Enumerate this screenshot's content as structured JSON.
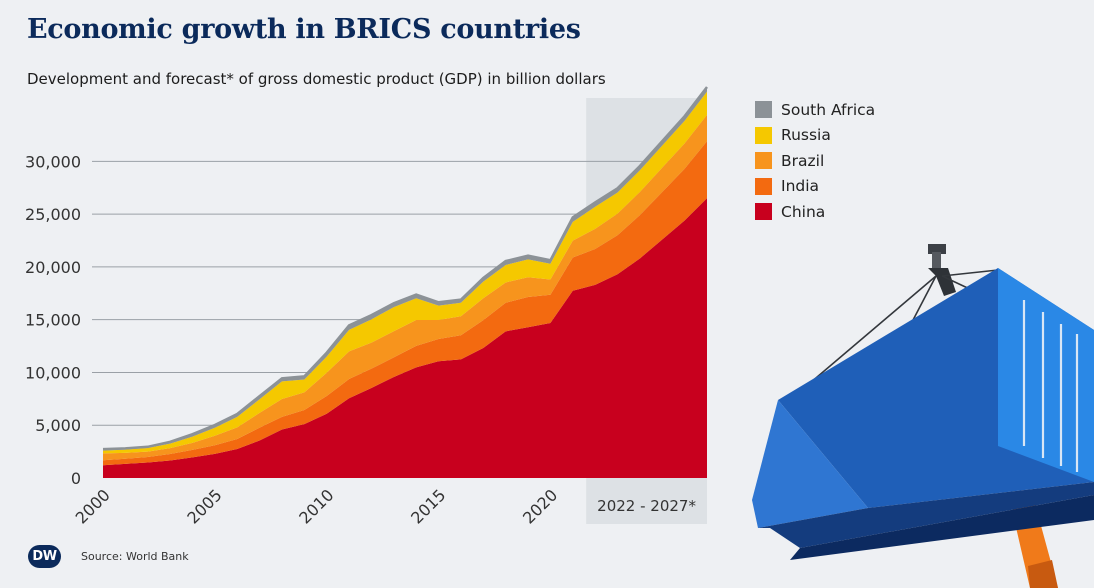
{
  "title": "Economic growth in BRICS countries",
  "subtitle": "Development and forecast* of gross domestic product (GDP) in billion dollars",
  "source": "Source: World Bank",
  "logo": "DW",
  "forecast_label": "2022 - 2027*",
  "chart_data": {
    "type": "area",
    "stacked": true,
    "x": [
      2000,
      2001,
      2002,
      2003,
      2004,
      2005,
      2006,
      2007,
      2008,
      2009,
      2010,
      2011,
      2012,
      2013,
      2014,
      2015,
      2016,
      2017,
      2018,
      2019,
      2020,
      2021,
      2022,
      2023,
      2024,
      2025,
      2026,
      2027
    ],
    "series": [
      {
        "name": "China",
        "color": "#c8001e",
        "values": [
          1211,
          1340,
          1471,
          1660,
          1955,
          2286,
          2752,
          3550,
          4594,
          5101,
          6087,
          7552,
          8532,
          9570,
          10476,
          11062,
          11233,
          12310,
          13895,
          14280,
          14688,
          17734,
          18300,
          19300,
          20800,
          22600,
          24400,
          26500
        ]
      },
      {
        "name": "India",
        "color": "#f36a10",
        "values": [
          468,
          485,
          515,
          608,
          709,
          820,
          940,
          1217,
          1199,
          1342,
          1676,
          1823,
          1828,
          1857,
          2039,
          2104,
          2295,
          2652,
          2713,
          2871,
          2667,
          3150,
          3400,
          3700,
          4100,
          4500,
          4900,
          5400
        ]
      },
      {
        "name": "Brazil",
        "color": "#f7941d",
        "values": [
          655,
          559,
          509,
          558,
          669,
          892,
          1108,
          1397,
          1696,
          1667,
          2209,
          2616,
          2465,
          2473,
          2456,
          1802,
          1796,
          2063,
          1917,
          1873,
          1448,
          1609,
          1900,
          2050,
          2200,
          2300,
          2400,
          2500
        ]
      },
      {
        "name": "Russia",
        "color": "#f5c800",
        "values": [
          260,
          307,
          345,
          430,
          591,
          764,
          990,
          1300,
          1661,
          1223,
          1525,
          2046,
          2208,
          2292,
          2059,
          1363,
          1277,
          1574,
          1657,
          1693,
          1489,
          1775,
          2100,
          2000,
          2050,
          2100,
          2150,
          2200
        ]
      },
      {
        "name": "South Africa",
        "color": "#8c9297",
        "values": [
          136,
          121,
          116,
          175,
          229,
          258,
          272,
          299,
          287,
          298,
          375,
          416,
          396,
          367,
          351,
          318,
          296,
          349,
          368,
          351,
          335,
          419,
          405,
          400,
          410,
          420,
          430,
          440
        ]
      }
    ],
    "yticks": [
      0,
      5000,
      10000,
      15000,
      20000,
      25000,
      30000
    ],
    "ytick_labels": [
      "0",
      "5,000",
      "10,000",
      "15,000",
      "20,000",
      "25,000",
      "30,000"
    ],
    "xticks": [
      2000,
      2005,
      2010,
      2015,
      2020
    ],
    "xtick_labels": [
      "2000",
      "2005",
      "2010",
      "2015",
      "2020"
    ],
    "ylim": [
      0,
      36000
    ],
    "xlim": [
      2000,
      2027
    ],
    "forecast_range": [
      2022,
      2027
    ],
    "legend_order": [
      "South Africa",
      "Russia",
      "Brazil",
      "India",
      "China"
    ],
    "legend_position": "right",
    "grid": "horizontal"
  }
}
